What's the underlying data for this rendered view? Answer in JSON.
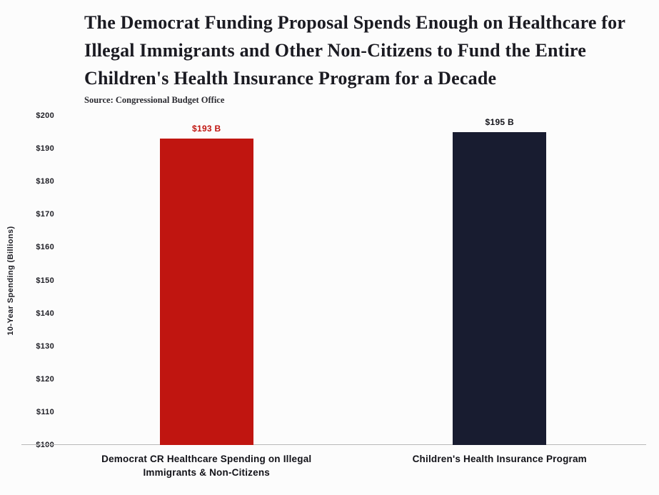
{
  "chart": {
    "title": "The Democrat Funding Proposal Spends Enough on Healthcare for Illegal Immigrants and Other Non-Citizens to Fund the Entire Children's Health Insurance Program for a Decade",
    "source": "Source: Congressional Budget Office",
    "ylabel": "10-Year Spending (Billions)"
  },
  "chart_data": {
    "type": "bar",
    "title": "The Democrat Funding Proposal Spends Enough on Healthcare for Illegal Immigrants and Other Non-Citizens to Fund the Entire Children's Health Insurance Program for a Decade",
    "source": "Source: Congressional Budget Office",
    "categories": [
      "Democrat CR Healthcare Spending on Illegal Immigrants & Non-Citizens",
      "Children's Health Insurance Program"
    ],
    "values": [
      193,
      195
    ],
    "value_labels": [
      "$193 B",
      "$195 B"
    ],
    "bar_colors": [
      "#c01510",
      "#181c30"
    ],
    "value_label_colors": [
      "#c01510",
      "#14141a"
    ],
    "xlabel": "",
    "ylabel": "10-Year Spending (Billions)",
    "ylim": [
      100,
      200
    ],
    "y_tick_labels": [
      "$200",
      "$190",
      "$180",
      "$170",
      "$160",
      "$150",
      "$140",
      "$130",
      "$120",
      "$110",
      "$100"
    ],
    "grid": "off",
    "legend": "none"
  }
}
